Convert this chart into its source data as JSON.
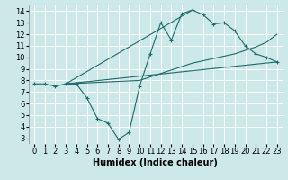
{
  "title": "",
  "xlabel": "Humidex (Indice chaleur)",
  "bg_color": "#cce8e8",
  "grid_color": "#ffffff",
  "line_color": "#1a6b6b",
  "marker": "+",
  "xlim": [
    -0.5,
    23.5
  ],
  "ylim": [
    2.5,
    14.5
  ],
  "xticks": [
    0,
    1,
    2,
    3,
    4,
    5,
    6,
    7,
    8,
    9,
    10,
    11,
    12,
    13,
    14,
    15,
    16,
    17,
    18,
    19,
    20,
    21,
    22,
    23
  ],
  "yticks": [
    3,
    4,
    5,
    6,
    7,
    8,
    9,
    10,
    11,
    12,
    13,
    14
  ],
  "line1_x": [
    0,
    1,
    2,
    3,
    4,
    5,
    6,
    7,
    8,
    9,
    10,
    11,
    12,
    13,
    14,
    15,
    16,
    17,
    18,
    19,
    20,
    21,
    22,
    23
  ],
  "line1_y": [
    7.7,
    7.7,
    7.5,
    7.7,
    7.7,
    6.5,
    4.7,
    4.3,
    2.9,
    3.5,
    7.5,
    10.3,
    13.0,
    11.5,
    13.8,
    14.1,
    13.7,
    12.9,
    13.0,
    12.3,
    11.0,
    10.3,
    10.0,
    9.6
  ],
  "line2_x": [
    3,
    23
  ],
  "line2_y": [
    7.7,
    9.6
  ],
  "line3_x": [
    3,
    15
  ],
  "line3_y": [
    7.7,
    14.1
  ],
  "line4_x": [
    3,
    10,
    11,
    12,
    13,
    14,
    15,
    16,
    17,
    18,
    19,
    20,
    21,
    22,
    23
  ],
  "line4_y": [
    7.7,
    8.0,
    8.3,
    8.6,
    8.9,
    9.2,
    9.5,
    9.7,
    9.9,
    10.1,
    10.3,
    10.6,
    10.9,
    11.3,
    12.0
  ],
  "xlabel_fontsize": 7,
  "tick_fontsize": 6
}
